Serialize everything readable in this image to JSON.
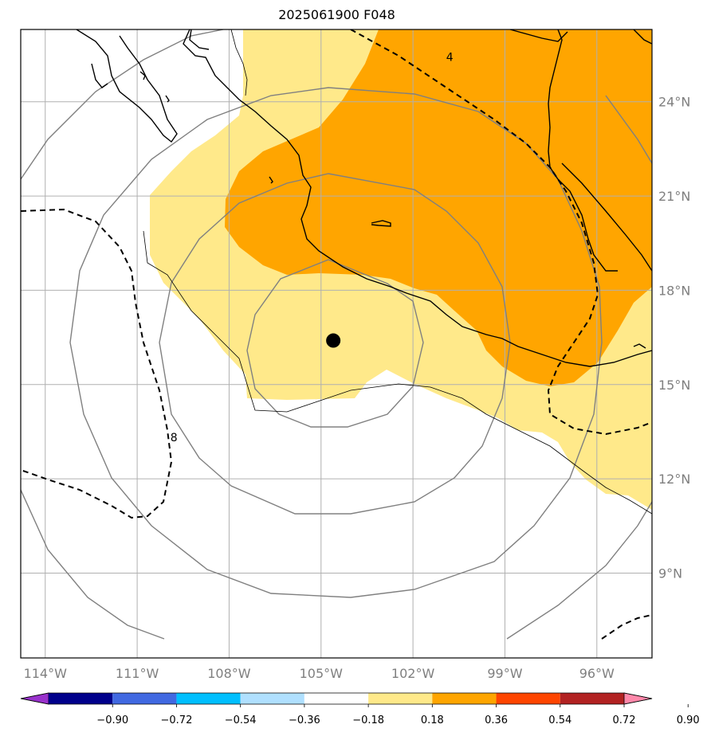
{
  "title": "2025061900 F048",
  "map": {
    "lon_range": [
      -114.8,
      -94.2
    ],
    "lat_range": [
      6.3,
      26.3
    ],
    "lon_ticks": [
      -114,
      -111,
      -108,
      -105,
      -102,
      -99,
      -96
    ],
    "lon_tick_labels": [
      "114°W",
      "111°W",
      "108°W",
      "105°W",
      "102°W",
      "99°W",
      "96°W"
    ],
    "lat_ticks": [
      9,
      12,
      15,
      18,
      21,
      24
    ],
    "lat_tick_labels": [
      "9°N",
      "12°N",
      "15°N",
      "18°N",
      "21°N",
      "24°N"
    ],
    "grid": true,
    "storm_center": {
      "lon": -104.6,
      "lat": 16.4
    },
    "range_rings_color": "#808080",
    "contour_labels": [
      {
        "text": "4",
        "lon": -100.8,
        "lat": 25.3
      },
      {
        "text": "8",
        "lon": -109.8,
        "lat": 13.2
      }
    ]
  },
  "colorbar": {
    "ticks": [
      "−0.90",
      "−0.72",
      "−0.54",
      "−0.36",
      "−0.18",
      "0.18",
      "0.36",
      "0.54",
      "0.72",
      "0.90"
    ],
    "colors": [
      "#9932cc",
      "#00008b",
      "#4169e1",
      "#00bfff",
      "#b0e0ff",
      "#ffffff",
      "#ffe98a",
      "#ffa500",
      "#ff4500",
      "#b22222",
      "#ff88aa"
    ]
  },
  "fill_colors": {
    "light": "#ffe98a",
    "orange": "#ffa500"
  }
}
